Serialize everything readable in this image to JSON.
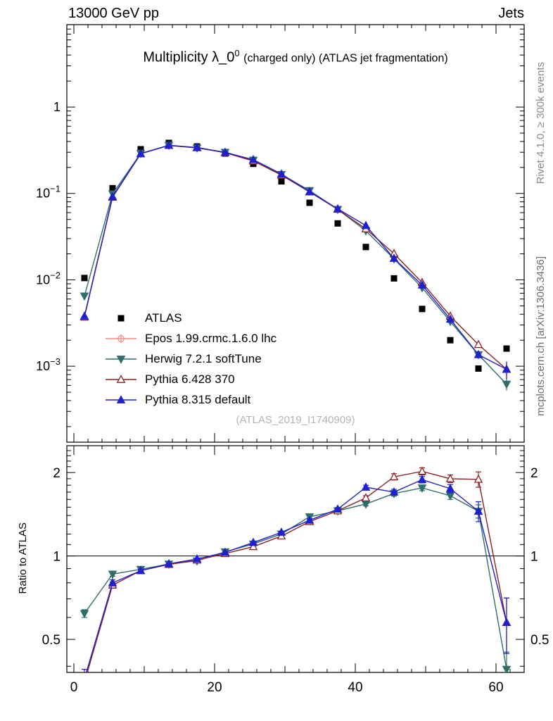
{
  "header": {
    "left": "13000 GeV pp",
    "right": "Jets"
  },
  "title": {
    "main": "Multiplicity λ_0",
    "sup": "0",
    "rest": "(charged only) (ATLAS jet fragmentation)"
  },
  "side": {
    "rivet": "Rivet 4.1.0, ≥ 300k events",
    "mcplots": "mcplots.cern.ch [arXiv:1306.3436]"
  },
  "watermark": "(ATLAS_2019_I1740909)",
  "axes": {
    "ratio_label": "Ratio to ATLAS",
    "x_tick_labels": [
      "0",
      "20",
      "40",
      "60"
    ],
    "top_y_tick_labels": [
      "1",
      "10⁻¹",
      "10⁻²",
      "10⁻³"
    ],
    "ratio_y_tick_labels": [
      "0.5",
      "1",
      "2"
    ]
  },
  "chart_data": {
    "type": "line",
    "title": "Multiplicity λ_0^0 (charged only) (ATLAS jet fragmentation)",
    "xlabel": "",
    "ylabel_top": "",
    "ylabel_ratio": "Ratio to ATLAS",
    "xlim": [
      -1,
      64
    ],
    "x_ticks_labeled": [
      0,
      20,
      40,
      60
    ],
    "top": {
      "ylog": true,
      "ylim": [
        0.000132,
        9
      ],
      "yticks": [
        1,
        0.1,
        0.01,
        0.001
      ]
    },
    "ratio": {
      "ylog": true,
      "ylim": [
        0.38,
        2.5
      ],
      "yticks": [
        0.5,
        1,
        2
      ],
      "reference_line": 1
    },
    "x": [
      1.5,
      5.5,
      9.5,
      13.5,
      17.5,
      21.5,
      25.5,
      29.5,
      33.5,
      37.5,
      41.5,
      45.5,
      49.5,
      53.5,
      57.5,
      61.5
    ],
    "series": [
      {
        "name": "ATLAS",
        "color": "#000000",
        "marker": "square",
        "filled": true,
        "line": false,
        "values": [
          0.0105,
          0.115,
          0.325,
          0.385,
          0.35,
          0.29,
          0.22,
          0.138,
          0.078,
          0.045,
          0.024,
          0.0104,
          0.0046,
          0.002,
          0.00094,
          0.0016
        ]
      },
      {
        "name": "Epos 1.99.crmc.1.6.0 lhc",
        "color": "#f08878",
        "marker": "circle-plus",
        "filled": false,
        "line": true,
        "values": []
      },
      {
        "name": "Herwig 7.2.1 softTune",
        "color": "#2e6f6a",
        "marker": "triangle-down",
        "filled": true,
        "line": true,
        "values": [
          0.0065,
          0.0989,
          0.291,
          0.36,
          0.336,
          0.3,
          0.243,
          0.166,
          0.108,
          0.0655,
          0.037,
          0.0175,
          0.0081,
          0.0033,
          0.00136,
          0.00062
        ],
        "ratio": [
          0.62,
          0.86,
          0.895,
          0.935,
          0.96,
          1.035,
          1.105,
          1.2,
          1.385,
          1.455,
          1.54,
          1.68,
          1.76,
          1.65,
          1.45,
          0.39
        ],
        "ratio_err": [
          0.02,
          0.015,
          0.008,
          0.006,
          0.006,
          0.006,
          0.008,
          0.01,
          0.015,
          0.02,
          0.025,
          0.035,
          0.04,
          0.05,
          0.08,
          0.06
        ]
      },
      {
        "name": "Pythia 6.428 370",
        "color": "#8b2020",
        "marker": "triangle-up",
        "filled": false,
        "line": true,
        "values": [
          0.0037,
          0.0903,
          0.288,
          0.359,
          0.338,
          0.296,
          0.238,
          0.163,
          0.104,
          0.0655,
          0.0389,
          0.0201,
          0.0093,
          0.0038,
          0.00178,
          0.00092
        ],
        "ratio": [
          0.35,
          0.785,
          0.885,
          0.932,
          0.966,
          1.02,
          1.08,
          1.18,
          1.33,
          1.455,
          1.62,
          1.93,
          2.02,
          1.9,
          1.89,
          0.575
        ],
        "ratio_err": [
          0.03,
          0.02,
          0.008,
          0.006,
          0.006,
          0.006,
          0.008,
          0.01,
          0.015,
          0.02,
          0.03,
          0.05,
          0.06,
          0.06,
          0.12,
          0.13
        ]
      },
      {
        "name": "Pythia 8.315 default",
        "color": "#2020cc",
        "marker": "triangle-up",
        "filled": true,
        "line": true,
        "values": [
          0.0038,
          0.092,
          0.288,
          0.361,
          0.341,
          0.299,
          0.246,
          0.168,
          0.105,
          0.0664,
          0.0425,
          0.0177,
          0.0087,
          0.0035,
          0.00136,
          0.00092
        ],
        "ratio": [
          0.36,
          0.8,
          0.885,
          0.937,
          0.975,
          1.03,
          1.118,
          1.217,
          1.345,
          1.475,
          1.77,
          1.7,
          1.885,
          1.75,
          1.45,
          0.575
        ],
        "ratio_err": [
          0.03,
          0.02,
          0.008,
          0.006,
          0.006,
          0.006,
          0.008,
          0.01,
          0.015,
          0.02,
          0.03,
          0.04,
          0.05,
          0.06,
          0.12,
          0.13
        ]
      }
    ]
  }
}
